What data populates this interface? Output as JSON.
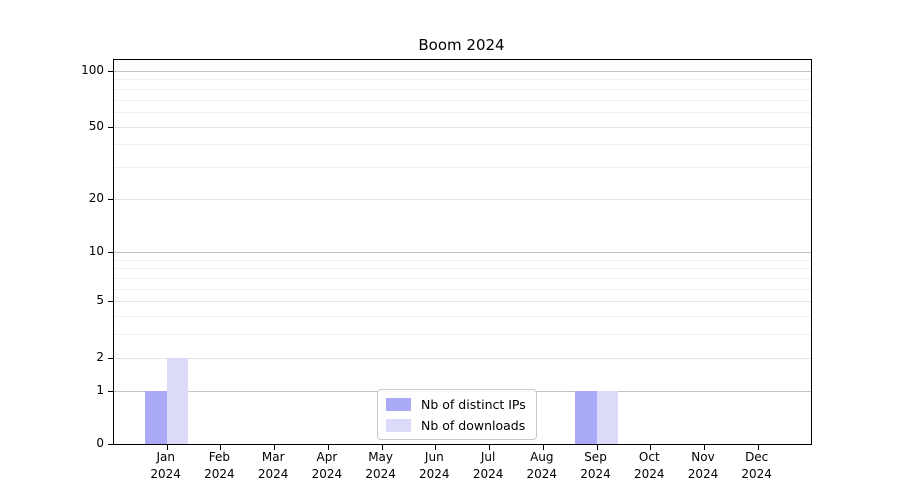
{
  "title": "Boom 2024",
  "chart_data": {
    "type": "bar",
    "title": "Boom 2024",
    "categories": [
      "Jan 2024",
      "Feb 2024",
      "Mar 2024",
      "Apr 2024",
      "May 2024",
      "Jun 2024",
      "Jul 2024",
      "Aug 2024",
      "Sep 2024",
      "Oct 2024",
      "Nov 2024",
      "Dec 2024"
    ],
    "series": [
      {
        "name": "Nb of distinct IPs",
        "color": "#a9a9f7",
        "values": [
          1,
          0,
          0,
          0,
          0,
          0,
          0,
          0,
          1,
          0,
          0,
          0
        ]
      },
      {
        "name": "Nb of downloads",
        "color": "#dbdbf9",
        "values": [
          2,
          0,
          0,
          0,
          0,
          0,
          0,
          0,
          1,
          0,
          0,
          0
        ]
      }
    ],
    "xlabel": "",
    "ylabel": "",
    "yscale": "log1p",
    "ylim": [
      0,
      115
    ],
    "yticks": [
      0,
      1,
      2,
      5,
      10,
      20,
      50,
      100
    ],
    "gridlines": {
      "decade": [
        1,
        10,
        100
      ],
      "labeled": [
        2,
        5,
        20,
        50
      ],
      "minor": [
        3,
        4,
        6,
        7,
        8,
        9,
        30,
        40,
        60,
        70,
        80,
        90
      ]
    },
    "grid": "on",
    "legend_position": "lower-center-inside"
  },
  "legend": {
    "items": [
      {
        "label": "Nb of distinct IPs",
        "color": "#a9a9f7"
      },
      {
        "label": "Nb of downloads",
        "color": "#dbdbf9"
      }
    ]
  }
}
